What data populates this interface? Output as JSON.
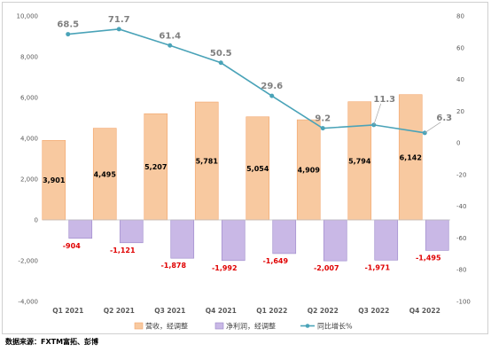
{
  "chart_data": {
    "type": "bar",
    "categories": [
      "Q1 2021",
      "Q2 2021",
      "Q3 2021",
      "Q4 2021",
      "Q1 2022",
      "Q2 2022",
      "Q3 2022",
      "Q4 2022"
    ],
    "series": [
      {
        "name": "营收，经调整",
        "type": "bar",
        "axis": "left",
        "color": "#f8c9a0",
        "values": [
          3901,
          4495,
          5207,
          5781,
          5054,
          4909,
          5794,
          6142
        ],
        "labels": [
          "3,901",
          "4,495",
          "5,207",
          "5,781",
          "5,054",
          "4,909",
          "5,794",
          "6,142"
        ]
      },
      {
        "name": "净利润，经调整",
        "type": "bar",
        "axis": "left",
        "color": "#c9b8e6",
        "values": [
          -904,
          -1121,
          -1878,
          -1992,
          -1649,
          -2007,
          -1971,
          -1495
        ],
        "labels": [
          "-904",
          "-1,121",
          "-1,878",
          "-1,992",
          "-1,649",
          "-2,007",
          "-1,971",
          "-1,495"
        ]
      },
      {
        "name": "同比增长%",
        "type": "line",
        "axis": "right",
        "color": "#4aa3b8",
        "values": [
          68.5,
          71.7,
          61.4,
          50.5,
          29.6,
          9.2,
          11.3,
          6.3
        ],
        "labels": [
          "68.5",
          "71.7",
          "61.4",
          "50.5",
          "29.6",
          "9.2",
          "11.3",
          "6.3"
        ]
      }
    ],
    "y_left": {
      "min": -4000,
      "max": 10000,
      "step": 2000,
      "tick_labels": [
        "-4,000",
        "-2,000",
        "0",
        "2,000",
        "4,000",
        "6,000",
        "8,000",
        "10,000"
      ]
    },
    "y_right": {
      "min": -100,
      "max": 80,
      "step": 20,
      "tick_labels": [
        "-100",
        "-80",
        "-60",
        "-40",
        "-20",
        "0",
        "20",
        "40",
        "60",
        "80"
      ]
    },
    "legend_position": "bottom",
    "grid": false
  },
  "source": "数据来源：FXTM富拓、彭博"
}
